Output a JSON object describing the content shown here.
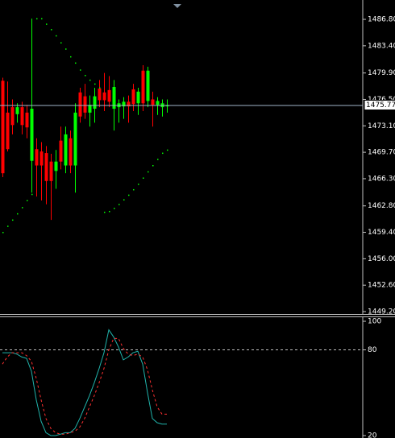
{
  "chart_data": [
    {
      "type": "candlestick",
      "open": [
        1478.9,
        1474.8,
        1475.5,
        1474.6,
        1475.5,
        1474.8,
        1468.6,
        1470.1,
        1469.8,
        1469.6,
        1468.5,
        1467.3,
        1471.2,
        1468.0,
        1471.5,
        1468.0,
        1477.4,
        1476.9,
        1474.8,
        1475.3,
        1477.9,
        1477.4,
        1477.7,
        1475.3,
        1475.5,
        1475.6,
        1476.2,
        1477.8,
        1476.0,
        1480.2,
        1476.3,
        1476.5,
        1475.8,
        1475.5,
        1475.6
      ],
      "high": [
        1479.3,
        1478.8,
        1476.5,
        1476.0,
        1476.2,
        1475.8,
        1486.9,
        1471.5,
        1471.0,
        1470.5,
        1469.5,
        1470.0,
        1473.0,
        1473.0,
        1472.5,
        1476.0,
        1478.0,
        1478.5,
        1477.0,
        1478.0,
        1479.0,
        1479.9,
        1479.5,
        1479.0,
        1476.5,
        1476.8,
        1477.0,
        1478.5,
        1478.0,
        1480.9,
        1480.7,
        1477.5,
        1476.8,
        1476.5,
        1476.5
      ],
      "low": [
        1466.5,
        1469.8,
        1472.0,
        1473.5,
        1472.0,
        1471.5,
        1464.5,
        1464.0,
        1463.5,
        1463.0,
        1461.0,
        1465.0,
        1467.5,
        1467.0,
        1467.0,
        1464.5,
        1473.5,
        1474.0,
        1473.0,
        1473.5,
        1475.5,
        1475.0,
        1475.5,
        1472.5,
        1473.5,
        1474.0,
        1473.5,
        1475.0,
        1474.5,
        1475.0,
        1475.5,
        1473.0,
        1474.5,
        1474.3,
        1474.8
      ],
      "close": [
        1467.0,
        1470.1,
        1473.2,
        1475.5,
        1473.2,
        1472.9,
        1475.3,
        1468.0,
        1468.0,
        1466.0,
        1466.0,
        1468.5,
        1468.5,
        1472.0,
        1468.0,
        1474.8,
        1474.3,
        1474.8,
        1475.8,
        1476.9,
        1476.4,
        1476.4,
        1476.2,
        1478.1,
        1476.0,
        1476.2,
        1475.6,
        1475.9,
        1477.5,
        1476.0,
        1480.2,
        1475.8,
        1476.3,
        1476.0,
        1475.77
      ],
      "sar": [
        1459.4,
        1460.2,
        1461.0,
        1461.8,
        1462.6,
        1463.5,
        1464.3,
        1486.9,
        1486.9,
        1486.2,
        1485.5,
        1484.7,
        1483.8,
        1483.0,
        1482.0,
        1481.2,
        1480.3,
        1479.6,
        1479.0,
        1478.5,
        1478.0,
        1462.0,
        1462.1,
        1462.5,
        1463.0,
        1463.6,
        1464.2,
        1464.9,
        1465.6,
        1466.4,
        1467.2,
        1468.0,
        1468.8,
        1469.6,
        1470.0
      ],
      "up_color": "#00ff00",
      "down_color": "#ff0000",
      "sar_color": "#00ff00",
      "ylim": [
        1448.89,
        1489.29
      ],
      "yticks": [
        {
          "value": 1486.8,
          "label": "1486.80"
        },
        {
          "value": 1483.4,
          "label": "1483.40"
        },
        {
          "value": 1479.9,
          "label": "1479.90"
        },
        {
          "value": 1476.5,
          "label": "1476.50"
        },
        {
          "value": 1473.1,
          "label": "1473.10"
        },
        {
          "value": 1469.7,
          "label": "1469.70"
        },
        {
          "value": 1466.3,
          "label": "1466.30"
        },
        {
          "value": 1462.8,
          "label": "1462.80"
        },
        {
          "value": 1459.4,
          "label": "1459.40"
        },
        {
          "value": 1456.0,
          "label": "1456.00"
        },
        {
          "value": 1452.6,
          "label": "1452.60"
        },
        {
          "value": 1449.2,
          "label": "1449.20"
        }
      ]
    },
    {
      "type": "line",
      "series": [
        {
          "color": "#20b2aa",
          "values": [
            78,
            78,
            78,
            77,
            75,
            74,
            65,
            45,
            30,
            22,
            20,
            20,
            21,
            22,
            22,
            25,
            32,
            40,
            48,
            57,
            67,
            78,
            94,
            89,
            82,
            73,
            75,
            78,
            79,
            70,
            50,
            32,
            29,
            28,
            28
          ]
        },
        {
          "color": "#ff3030",
          "dashed": true,
          "values": [
            70,
            75,
            78,
            78,
            78,
            76,
            72,
            60,
            45,
            32,
            25,
            22,
            21,
            21,
            22,
            23,
            26,
            32,
            40,
            48,
            57,
            67,
            80,
            88,
            88,
            81,
            77,
            76,
            77,
            75,
            66,
            52,
            40,
            35,
            35
          ]
        }
      ],
      "ylim": [
        18.3,
        103.4
      ],
      "yticks": [
        100,
        80,
        20
      ],
      "level": 80
    }
  ]
}
